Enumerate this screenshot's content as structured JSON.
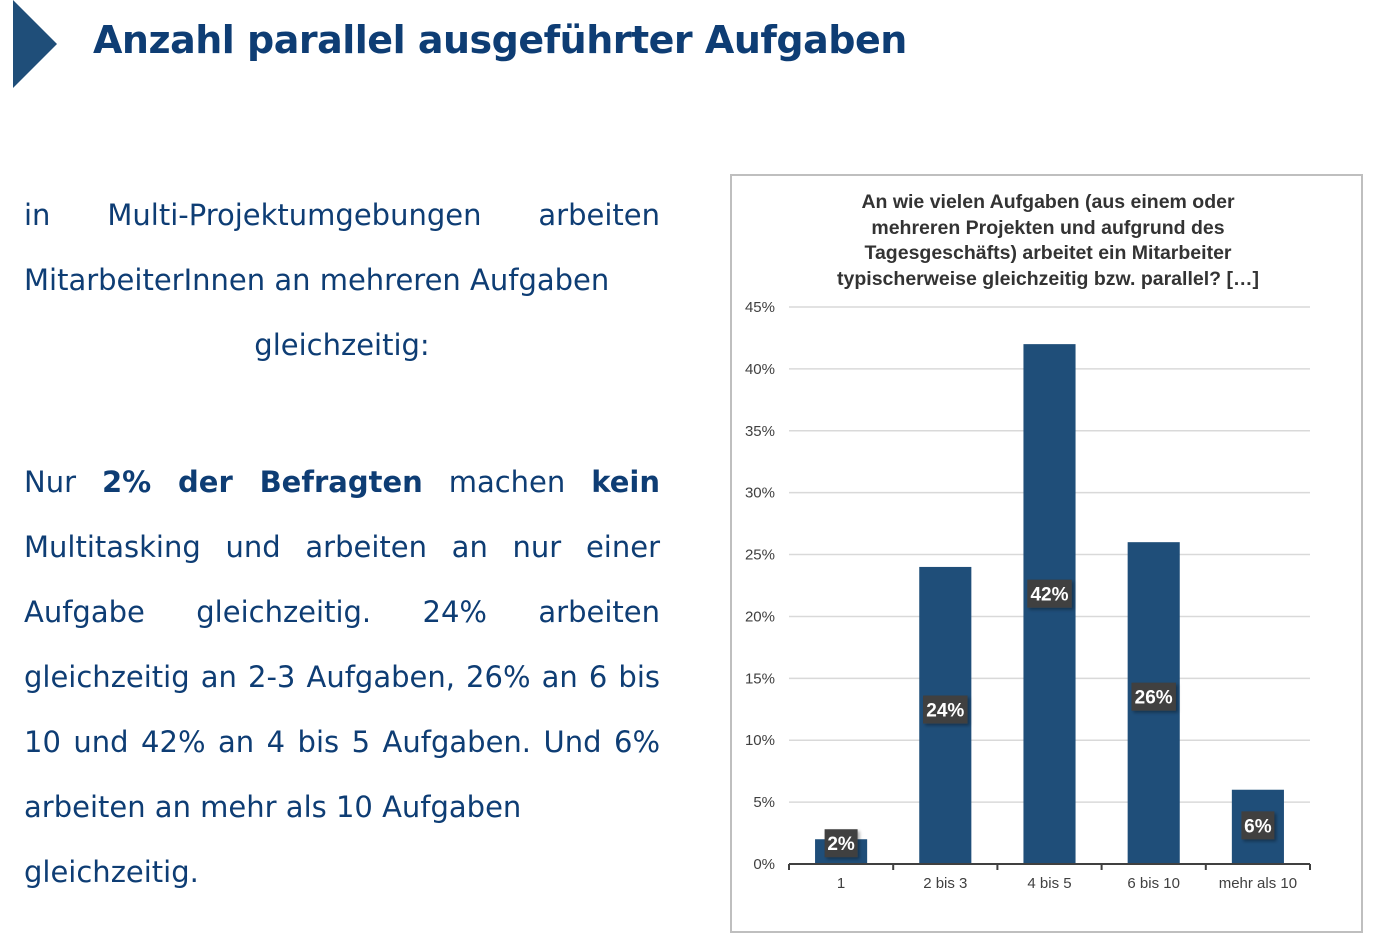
{
  "header": {
    "title": "Anzahl parallel ausgeführter Aufgaben"
  },
  "text": {
    "para1_line1": "in Multi-Projektumgebungen arbeiten MitarbeiterInnen an mehreren Aufgaben",
    "para1_line2": "gleichzeitig:",
    "para2_lead": "Nur ",
    "para2_bold1": "2% der Befragten",
    "para2_mid": " machen ",
    "para2_bold2": "kein",
    "para2_rest": " Multitasking und arbeiten an nur einer Aufgabe gleichzeitig. 24% arbeiten gleichzeitig an 2-3 Aufgaben, 26% an 6 bis 10 und 42% an 4 bis 5 Aufgaben. Und 6% arbeiten an mehr als 10 Aufgaben",
    "para2_last": "gleichzeitig."
  },
  "chart_data": {
    "type": "bar",
    "title_lines": [
      "An wie vielen Aufgaben (aus einem oder",
      "mehreren Projekten und aufgrund des",
      "Tagesgeschäfts) arbeitet ein Mitarbeiter",
      "typischerweise gleichzeitig bzw. parallel? […]"
    ],
    "categories": [
      "1",
      "2 bis 3",
      "4 bis 5",
      "6 bis 10",
      "mehr als 10"
    ],
    "values": [
      2,
      24,
      42,
      26,
      6
    ],
    "data_labels": [
      "2%",
      "24%",
      "42%",
      "26%",
      "6%"
    ],
    "y_ticks": [
      "0%",
      "5%",
      "10%",
      "15%",
      "20%",
      "25%",
      "30%",
      "35%",
      "40%",
      "45%"
    ],
    "ylim": [
      0,
      45
    ],
    "grid": true,
    "legend": "none",
    "bar_color": "#1F4E79",
    "label_bg_color": "#404040"
  }
}
